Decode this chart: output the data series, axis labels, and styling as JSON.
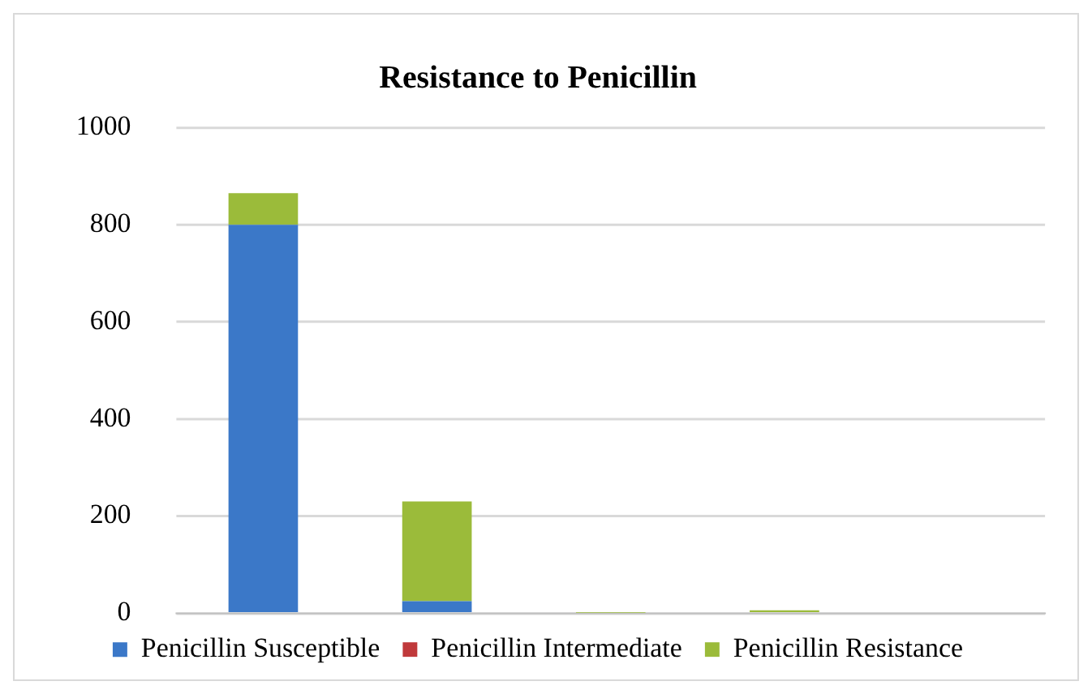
{
  "chart_data": {
    "type": "bar",
    "title": "Resistance to Penicillin",
    "categories": [
      null,
      null,
      null,
      null,
      null
    ],
    "stacked": true,
    "series": [
      {
        "name": "Penicillin Susceptible",
        "color": "#3b78c8",
        "values": [
          800,
          25,
          null,
          0,
          0
        ]
      },
      {
        "name": "Penicillin Intermediate",
        "color": "#c0393b",
        "values": [
          0,
          0,
          0,
          null,
          0
        ]
      },
      {
        "name": "Penicillin Resistance",
        "color": "#9bbb3a",
        "values": [
          65,
          205,
          1,
          6,
          0
        ]
      }
    ],
    "ylim": [
      0,
      1000
    ],
    "yticks": [
      0,
      200,
      400,
      600,
      800,
      1000
    ],
    "grid": "y",
    "legend": "bottom"
  }
}
